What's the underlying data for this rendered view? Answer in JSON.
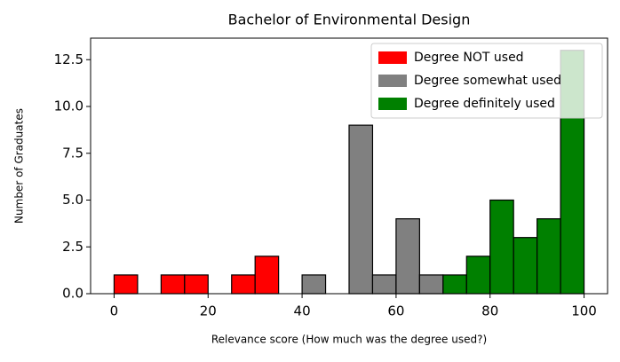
{
  "chart_data": {
    "type": "histogram",
    "title": "Bachelor of Environmental Design",
    "x_label": "Relevance score (How much was the degree used?)",
    "y_label": "Number of Graduates",
    "series": [
      {
        "name": "Degree NOT used",
        "color": "#ff0000",
        "bins": [
          0,
          5,
          10,
          15,
          20,
          25,
          30,
          35,
          40
        ],
        "values": [
          1,
          0,
          1,
          1,
          0,
          1,
          2,
          0
        ]
      },
      {
        "name": "Degree somewhat used",
        "color": "#808080",
        "bins": [
          40,
          45,
          50,
          55,
          60,
          65,
          70
        ],
        "values": [
          1,
          0,
          9,
          1,
          4,
          1
        ]
      },
      {
        "name": "Degree definitely used",
        "color": "#008000",
        "bins": [
          70,
          75,
          80,
          85,
          90,
          95,
          100
        ],
        "values": [
          1,
          2,
          5,
          3,
          4,
          13
        ]
      }
    ],
    "xlim": [
      -5,
      105
    ],
    "xticks": [
      0,
      20,
      40,
      60,
      80,
      100
    ],
    "ylim": [
      0,
      13.65
    ],
    "yticks": [
      {
        "value": 0,
        "label": "0.0"
      },
      2.5,
      {
        "value": 5,
        "label": "5.0"
      },
      7.5,
      {
        "value": 10,
        "label": "10.0"
      },
      12.5
    ],
    "legend": "upper right",
    "grid": false
  }
}
